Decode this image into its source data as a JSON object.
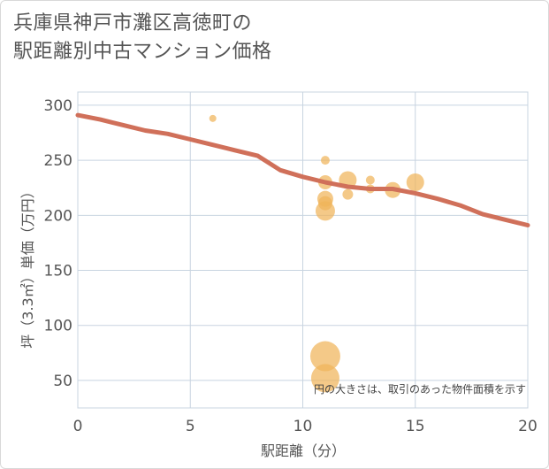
{
  "title_lines": [
    "兵庫県神戸市灘区高徳町の",
    "駅距離別中古マンション価格"
  ],
  "chart_data": {
    "type": "scatter",
    "title": "兵庫県神戸市灘区高徳町の駅距離別中古マンション価格",
    "xlabel": "駅距離（分）",
    "ylabel": "坪（3.3㎡）単価（万円）",
    "xlim": [
      0,
      20
    ],
    "ylim": [
      25,
      312
    ],
    "xticks": [
      0,
      5,
      10,
      15,
      20
    ],
    "yticks": [
      50,
      100,
      150,
      200,
      250,
      300
    ],
    "grid": true,
    "annotation": "円の大きさは、取引のあった物件面積を示す",
    "colors": {
      "points": "#f0b45a",
      "trend": "#d0705a",
      "grid": "#c8d4e0"
    },
    "points": [
      {
        "x": 6,
        "y": 288,
        "size": 4
      },
      {
        "x": 11,
        "y": 250,
        "size": 5
      },
      {
        "x": 11,
        "y": 230,
        "size": 8
      },
      {
        "x": 11,
        "y": 215,
        "size": 9
      },
      {
        "x": 11,
        "y": 211,
        "size": 8
      },
      {
        "x": 11,
        "y": 204,
        "size": 11
      },
      {
        "x": 11,
        "y": 72,
        "size": 17
      },
      {
        "x": 11,
        "y": 52,
        "size": 16
      },
      {
        "x": 12,
        "y": 232,
        "size": 10
      },
      {
        "x": 12,
        "y": 219,
        "size": 6
      },
      {
        "x": 13,
        "y": 232,
        "size": 5
      },
      {
        "x": 13,
        "y": 224,
        "size": 5
      },
      {
        "x": 14,
        "y": 223,
        "size": 9
      },
      {
        "x": 15,
        "y": 230,
        "size": 10
      }
    ],
    "trend": {
      "name": "trend",
      "x": [
        0,
        1,
        2,
        3,
        4,
        5,
        6,
        7,
        8,
        9,
        10,
        11,
        12,
        13,
        14,
        15,
        16,
        17,
        18,
        19,
        20
      ],
      "y": [
        291,
        287,
        282,
        277,
        274,
        269,
        264,
        259,
        254,
        241,
        235,
        230,
        226,
        224,
        224,
        220,
        215,
        209,
        201,
        196,
        191
      ]
    }
  }
}
